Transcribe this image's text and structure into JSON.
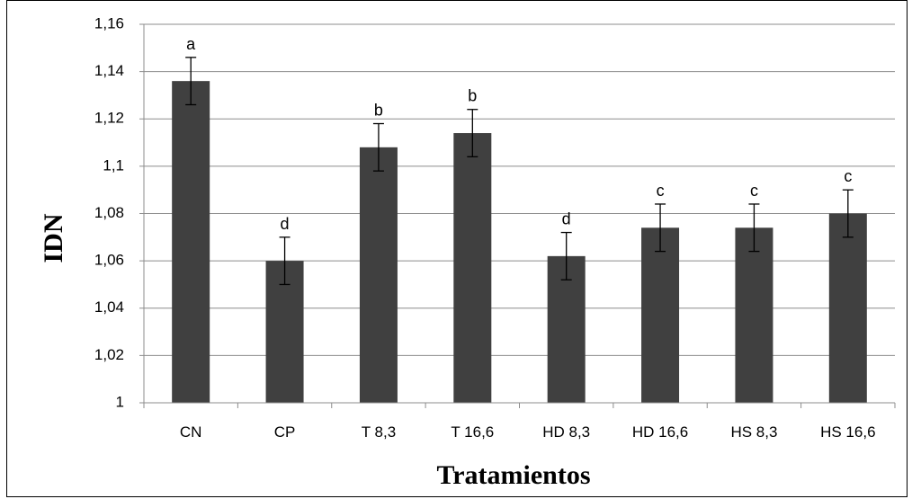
{
  "chart_data": {
    "type": "bar",
    "title": "",
    "xlabel": "Tratamientos",
    "ylabel": "IDN",
    "ylim": [
      1,
      1.16
    ],
    "yticks": [
      "1",
      "1,02",
      "1,04",
      "1,06",
      "1,08",
      "1,1",
      "1,12",
      "1,14",
      "1,16"
    ],
    "grid": true,
    "legend": "none",
    "bar_color": "#404040",
    "categories": [
      "CN",
      "CP",
      "T 8,3",
      "T 16,6",
      "HD 8,3",
      "HD 16,6",
      "HS 8,3",
      "HS 16,6"
    ],
    "values": [
      1.136,
      1.06,
      1.108,
      1.114,
      1.062,
      1.074,
      1.074,
      1.08
    ],
    "errors": [
      0.01,
      0.01,
      0.01,
      0.01,
      0.01,
      0.01,
      0.01,
      0.01
    ],
    "significance_letters": [
      "a",
      "d",
      "b",
      "b",
      "d",
      "c",
      "c",
      "c"
    ]
  }
}
